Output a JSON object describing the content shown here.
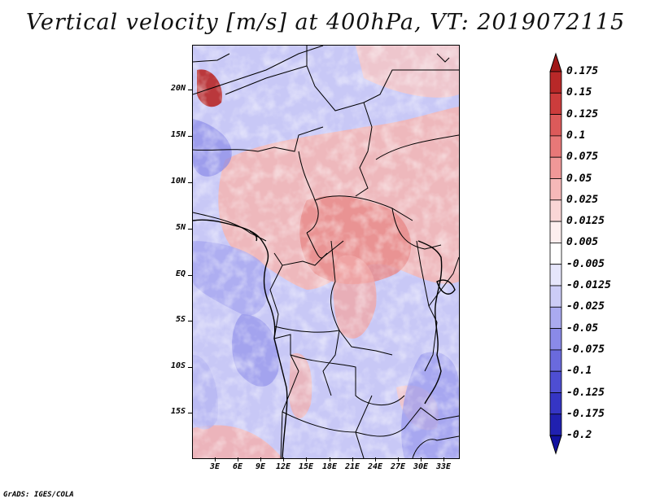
{
  "title": "Vertical velocity [m/s] at 400hPa, VT: 2019072115",
  "credit": "GrADS: IGES/COLA",
  "map": {
    "lat_labels": [
      "20N",
      "15N",
      "10N",
      "5N",
      "EQ",
      "5S",
      "10S",
      "15S"
    ],
    "lon_labels": [
      "3E",
      "6E",
      "9E",
      "12E",
      "15E",
      "18E",
      "21E",
      "24E",
      "27E",
      "30E",
      "33E"
    ]
  },
  "colorbar": {
    "labels": [
      "0.175",
      "0.15",
      "0.125",
      "0.1",
      "0.075",
      "0.05",
      "0.025",
      "0.0125",
      "0.005",
      "-0.005",
      "-0.0125",
      "-0.025",
      "-0.05",
      "-0.075",
      "-0.1",
      "-0.125",
      "-0.175",
      "-0.2"
    ],
    "colors": [
      "#a01818",
      "#b82828",
      "#cc3c3c",
      "#dc5a5a",
      "#e87878",
      "#f09898",
      "#f6b8b8",
      "#fad6d6",
      "#fdeeee",
      "#ffffff",
      "#e6e6fb",
      "#ccccf6",
      "#aaaaf0",
      "#8a8ae8",
      "#6a6add",
      "#4e4ed2",
      "#3535c4",
      "#2020b0",
      "#1212a0"
    ]
  }
}
